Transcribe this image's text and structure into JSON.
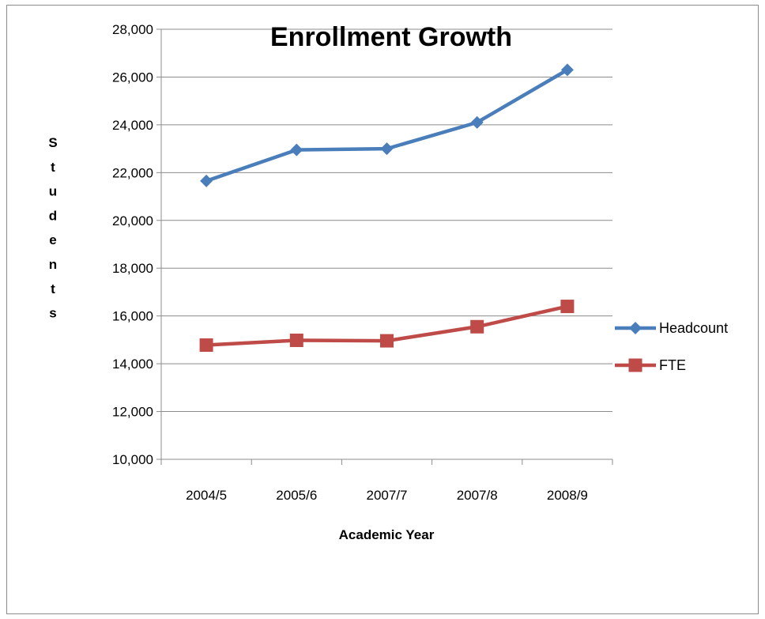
{
  "chart_data": {
    "type": "line",
    "title": "Enrollment  Growth",
    "xlabel": "Academic Year",
    "ylabel": "Students",
    "categories": [
      "2004/5",
      "2005/6",
      "2007/7",
      "2007/8",
      "2008/9"
    ],
    "ylim": [
      10000,
      28000
    ],
    "yticks": [
      10000,
      12000,
      14000,
      16000,
      18000,
      20000,
      22000,
      24000,
      26000,
      28000
    ],
    "ytick_labels": [
      "10,000",
      "12,000",
      "14,000",
      "16,000",
      "18,000",
      "20,000",
      "22,000",
      "24,000",
      "26,000",
      "28,000"
    ],
    "grid": true,
    "legend_position": "right",
    "series": [
      {
        "name": "Headcount",
        "color": "#4a7ebb",
        "marker": "diamond",
        "values": [
          21650,
          22950,
          23000,
          24100,
          26300
        ]
      },
      {
        "name": "FTE",
        "color": "#be4b48",
        "marker": "square",
        "values": [
          14780,
          14980,
          14960,
          15550,
          16400
        ]
      }
    ]
  }
}
